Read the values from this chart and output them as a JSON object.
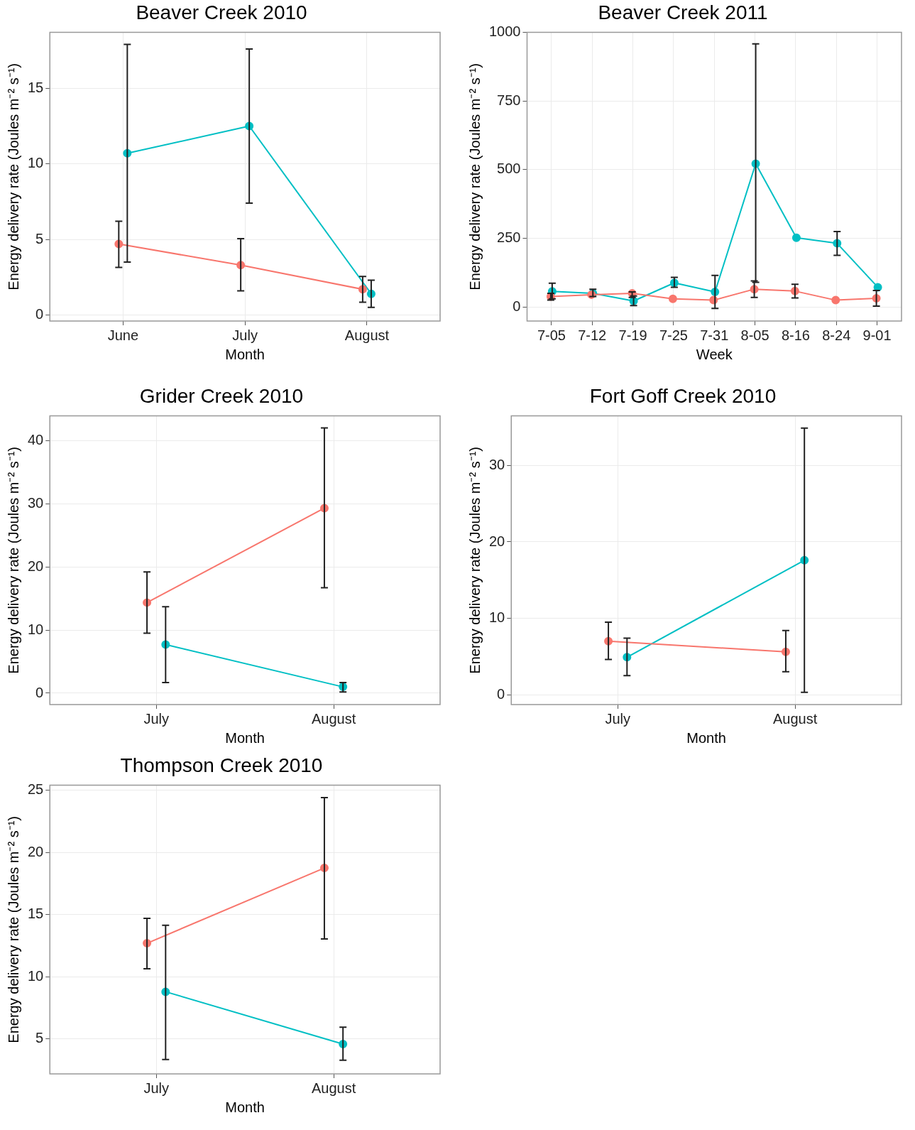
{
  "chart_data": [
    {
      "type": "line",
      "title": "Beaver Creek 2010",
      "xlabel": "Month",
      "ylabel": "Energy delivery rate (Joules m⁻² s⁻¹)",
      "categories": [
        "June",
        "July",
        "August"
      ],
      "ylim": [
        -0.4,
        18.7
      ],
      "yticks": [
        0,
        5,
        10,
        15
      ],
      "grid": true,
      "legend": false,
      "marker": "circle",
      "series": [
        {
          "color": "#f8766d",
          "values": [
            4.7,
            3.3,
            1.7
          ],
          "errors": [
            [
              3.15,
              6.2
            ],
            [
              1.6,
              5.05
            ],
            [
              0.85,
              2.55
            ]
          ]
        },
        {
          "color": "#00bfc4",
          "values": [
            10.7,
            12.5,
            1.4
          ],
          "errors": [
            [
              3.5,
              17.9
            ],
            [
              7.4,
              17.6
            ],
            [
              0.5,
              2.3
            ]
          ]
        }
      ]
    },
    {
      "type": "line",
      "title": "Beaver Creek 2011",
      "xlabel": "Week",
      "ylabel": "Energy delivery rate (Joules m⁻² s⁻¹)",
      "categories": [
        "7-05",
        "7-12",
        "7-19",
        "7-25",
        "7-31",
        "8-05",
        "8-16",
        "8-24",
        "9-01"
      ],
      "ylim": [
        -51,
        1000
      ],
      "yticks": [
        0,
        250,
        500,
        750,
        1000
      ],
      "grid": true,
      "legend": false,
      "marker": "circle",
      "series": [
        {
          "color": "#f8766d",
          "values": [
            38,
            45,
            50,
            30,
            25,
            65,
            58,
            25,
            32
          ],
          "errors": [
            [
              25,
              50
            ],
            null,
            [
              35,
              55
            ],
            null,
            null,
            [
              35,
              95
            ],
            [
              33,
              83
            ],
            null,
            [
              3,
              60
            ]
          ]
        },
        {
          "color": "#00bfc4",
          "values": [
            57,
            50,
            22,
            88,
            55,
            522,
            252,
            232,
            72
          ],
          "errors": [
            [
              30,
              87
            ],
            [
              38,
              65
            ],
            [
              5,
              40
            ],
            [
              72,
              108
            ],
            [
              -5,
              115
            ],
            [
              90,
              958
            ],
            null,
            [
              188,
              275
            ],
            null
          ]
        }
      ]
    },
    {
      "type": "line",
      "title": "Grider Creek 2010",
      "xlabel": "Month",
      "ylabel": "Energy delivery rate (Joules m⁻² s⁻¹)",
      "categories": [
        "July",
        "August"
      ],
      "ylim": [
        -1.8,
        43.9
      ],
      "yticks": [
        0,
        10,
        20,
        30,
        40
      ],
      "grid": true,
      "legend": false,
      "marker": "circle",
      "series": [
        {
          "color": "#f8766d",
          "values": [
            14.35,
            29.3
          ],
          "errors": [
            [
              9.5,
              19.2
            ],
            [
              16.7,
              42
            ]
          ]
        },
        {
          "color": "#00bfc4",
          "values": [
            7.7,
            1.0
          ],
          "errors": [
            [
              1.7,
              13.7
            ],
            [
              0.2,
              1.7
            ]
          ]
        }
      ]
    },
    {
      "type": "line",
      "title": "Fort Goff Creek 2010",
      "xlabel": "Month",
      "ylabel": "Energy delivery rate (Joules m⁻² s⁻¹)",
      "categories": [
        "July",
        "August"
      ],
      "ylim": [
        -1.3,
        36.5
      ],
      "yticks": [
        0,
        10,
        20,
        30
      ],
      "grid": true,
      "legend": false,
      "marker": "circle",
      "series": [
        {
          "color": "#f8766d",
          "values": [
            7.0,
            5.6
          ],
          "errors": [
            [
              4.6,
              9.5
            ],
            [
              3.0,
              8.4
            ]
          ]
        },
        {
          "color": "#00bfc4",
          "values": [
            4.9,
            17.6
          ],
          "errors": [
            [
              2.5,
              7.4
            ],
            [
              0.3,
              34.9
            ]
          ]
        }
      ]
    },
    {
      "type": "line",
      "title": "Thompson Creek 2010",
      "xlabel": "Month",
      "ylabel": "Energy delivery rate (Joules m⁻² s⁻¹)",
      "categories": [
        "July",
        "August"
      ],
      "ylim": [
        2.2,
        25.4
      ],
      "yticks": [
        5,
        10,
        15,
        20,
        25
      ],
      "grid": true,
      "legend": false,
      "marker": "circle",
      "series": [
        {
          "color": "#f8766d",
          "values": [
            12.7,
            18.75
          ],
          "errors": [
            [
              10.65,
              14.7
            ],
            [
              13.05,
              24.4
            ]
          ]
        },
        {
          "color": "#00bfc4",
          "values": [
            8.8,
            4.6
          ],
          "errors": [
            [
              3.35,
              14.15
            ],
            [
              3.3,
              5.95
            ]
          ]
        }
      ]
    }
  ]
}
